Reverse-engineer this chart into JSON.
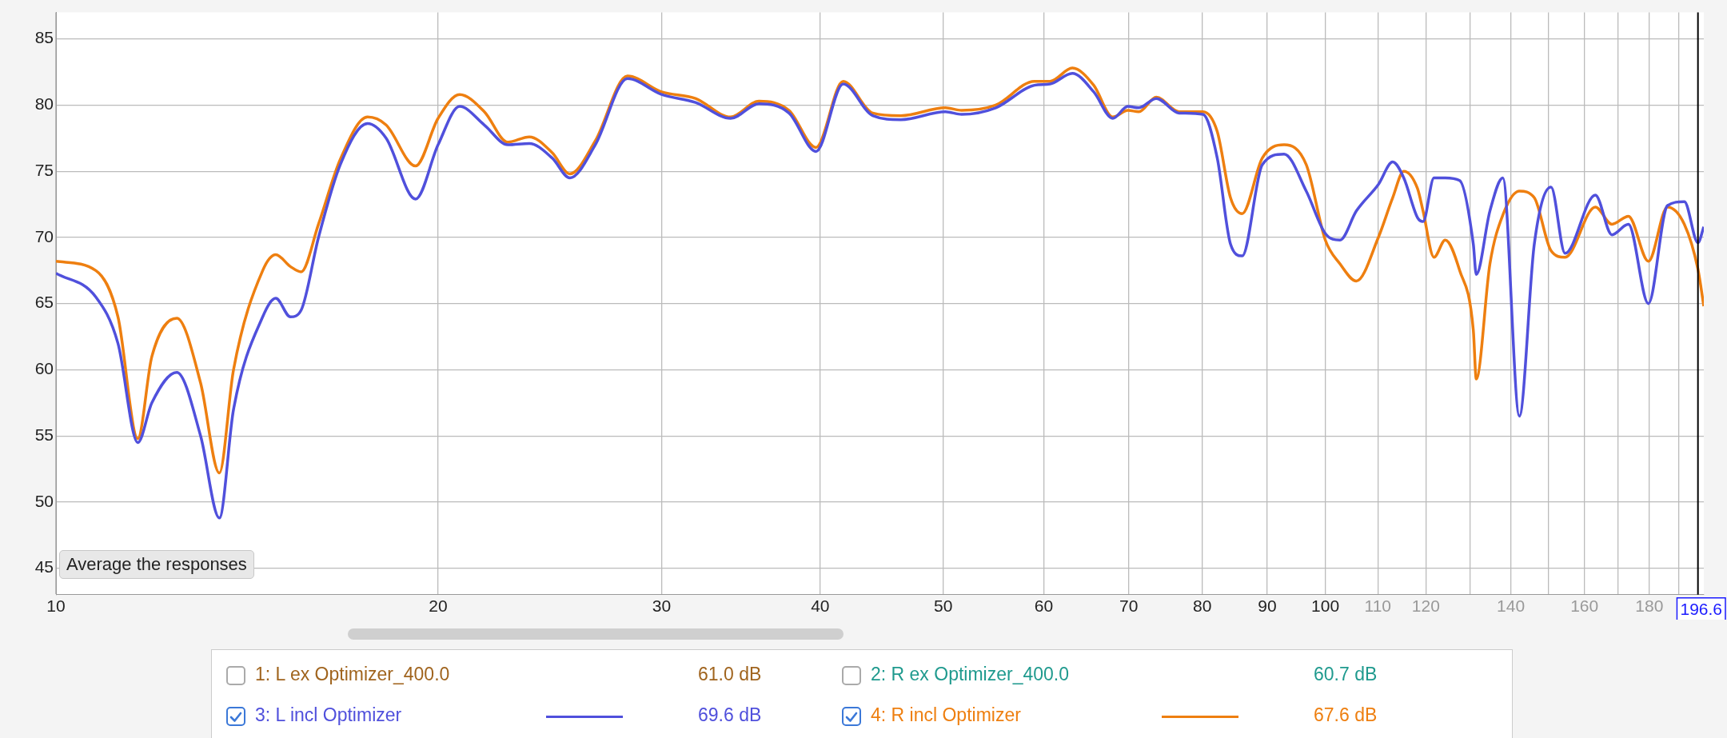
{
  "chart_data": {
    "type": "line",
    "x": [
      10,
      10.75,
      11.19,
      11.6,
      11.9,
      12.45,
      13.0,
      13.45,
      13.8,
      14.55,
      14.9,
      15.3,
      15.6,
      16.1,
      16.75,
      17.6,
      18.2,
      19.2,
      20,
      20.8,
      21.75,
      22.7,
      23.6,
      24.6,
      25.4,
      26.6,
      28.2,
      30,
      31.9,
      34,
      35.8,
      37.8,
      39.7,
      41.7,
      44.0,
      46.3,
      50.2,
      51.7,
      55.0,
      59.0,
      60.7,
      63.2,
      65.7,
      68.0,
      69.9,
      71.3,
      73.6,
      76.7,
      80.1,
      82.2,
      84.2,
      86.0,
      89.2,
      92.8,
      96.6,
      100,
      102.7,
      105.8,
      110.1,
      113.0,
      115.3,
      118.2,
      119.4,
      121.8,
      124.3,
      127.6,
      130.8,
      131.5,
      134.8,
      138.0,
      142.2,
      146.1,
      150.6,
      154.5,
      163.2,
      168.2,
      173.3,
      179.7,
      186.0,
      191.8,
      196.6,
      198.7
    ],
    "series": [
      {
        "name": "3: L incl Optimizer",
        "color": "#5050dc",
        "values": [
          67.3,
          65.5,
          62,
          54.5,
          57.5,
          59.8,
          55,
          48.8,
          57,
          64,
          65.4,
          64.0,
          64.5,
          70,
          75.5,
          78.6,
          77.5,
          72.9,
          77,
          79.9,
          78.5,
          77,
          77.1,
          76,
          74.5,
          77,
          82,
          80.8,
          80.2,
          79,
          80.1,
          79.4,
          76.5,
          81.6,
          79.2,
          78.9,
          79.5,
          79.3,
          79.8,
          81.5,
          81.6,
          82.4,
          81,
          79,
          79.9,
          79.8,
          80.5,
          79.4,
          79.3,
          76,
          69.5,
          68.6,
          75.5,
          76.3,
          73.5,
          70.3,
          69.8,
          72,
          74,
          75.7,
          74.5,
          71.5,
          71.2,
          74.5,
          74.5,
          74.3,
          69.5,
          67.2,
          72,
          74.5,
          56.5,
          69.5,
          73.8,
          68.8,
          73.2,
          70.2,
          71.0,
          65,
          72.4,
          72.7,
          69.6,
          70.8
        ]
      },
      {
        "name": "4: R incl Optimizer",
        "color": "#ee7f10",
        "values": [
          68.2,
          67.5,
          64,
          54.8,
          61,
          63.9,
          59,
          52.2,
          60,
          67.5,
          68.7,
          67.8,
          67.4,
          71,
          75.9,
          79.1,
          78.5,
          75.4,
          79,
          80.8,
          79.5,
          77.2,
          77.6,
          76.4,
          74.8,
          77.3,
          82.2,
          81,
          80.5,
          79.1,
          80.3,
          79.6,
          76.8,
          81.8,
          79.4,
          79.2,
          79.8,
          79.6,
          80,
          81.8,
          81.8,
          82.8,
          81.5,
          79.1,
          79.6,
          79.5,
          80.6,
          79.5,
          79.5,
          78,
          73,
          71.8,
          76.0,
          77,
          75.5,
          69.8,
          68,
          66.7,
          70,
          73,
          75,
          73.7,
          72,
          68.5,
          69.8,
          67.5,
          63,
          59.3,
          68,
          71.7,
          73.5,
          73,
          69,
          68.5,
          72.3,
          71,
          71.6,
          68.2,
          72.3,
          71,
          67.6,
          64.8
        ]
      }
    ],
    "xlim": [
      10,
      198.7
    ],
    "xticks": [
      10,
      20,
      30,
      40,
      50,
      60,
      70,
      80,
      90,
      100,
      110,
      120,
      {
        "value": 130,
        "label": null
      },
      140,
      {
        "value": 150,
        "label": null
      },
      160,
      {
        "value": 170,
        "label": null
      },
      180,
      {
        "value": 190,
        "label": null
      }
    ],
    "ylim": [
      43,
      87
    ],
    "yticks": [
      45,
      50,
      55,
      60,
      65,
      70,
      75,
      80,
      85
    ],
    "log": "x",
    "grid": true,
    "legend": "bottom",
    "ref_lines": [
      {
        "axis": "x",
        "value": 196.6,
        "label": "196.6",
        "color": "#000000"
      }
    ],
    "annotations": [
      "Average the responses",
      "1: L ex Optimizer_400.0",
      "61.0 dB",
      "2: R ex Optimizer_400.0",
      "60.7 dB",
      "69.6 dB",
      "67.6 dB"
    ]
  }
}
